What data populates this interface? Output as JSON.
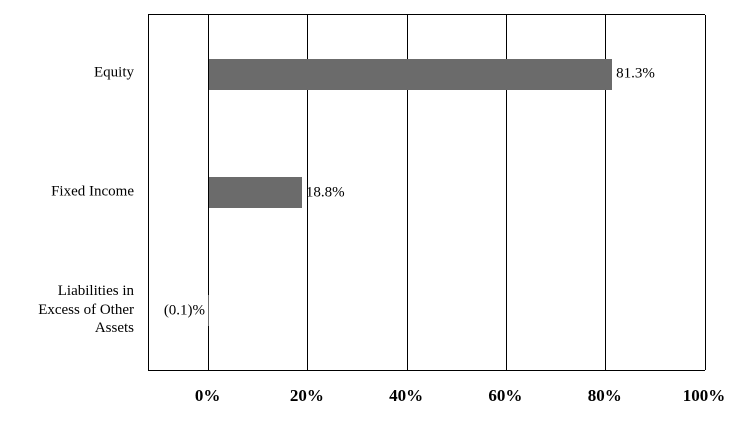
{
  "chart_data": {
    "type": "bar",
    "orientation": "horizontal",
    "title": "",
    "xlabel": "",
    "ylabel": "",
    "categories": [
      "Equity",
      "Fixed Income",
      "Liabilities in Excess of Other Assets"
    ],
    "values": [
      81.3,
      18.8,
      -0.1
    ],
    "data_labels": [
      "81.3%",
      "18.8%",
      "(0.1)%"
    ],
    "x_ticks": [
      {
        "label": "0%",
        "value": 0
      },
      {
        "label": "20%",
        "value": 20
      },
      {
        "label": "40%",
        "value": 40
      },
      {
        "label": "60%",
        "value": 60
      },
      {
        "label": "80%",
        "value": 80
      },
      {
        "label": "100%",
        "value": 100
      }
    ],
    "xlim": [
      -12,
      100
    ],
    "grid": "vertical-gridlines-at-ticks",
    "legend": "none",
    "bar_color": "#6b6b6b",
    "axis_color": "#000000",
    "background": "#ffffff"
  }
}
